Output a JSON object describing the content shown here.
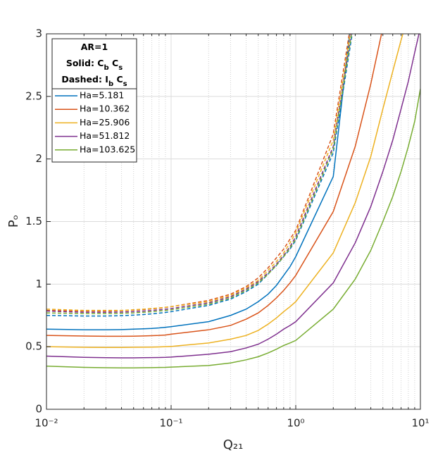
{
  "chart_data": {
    "type": "line",
    "xlabel": "Q₂₁",
    "ylabel": "Pₒ",
    "xscale": "log",
    "grid": true,
    "minor_grid": true,
    "xlim": [
      0.01,
      10
    ],
    "ylim": [
      0,
      3
    ],
    "xticks": [
      {
        "value": 0.01,
        "label": "10⁻²"
      },
      {
        "value": 0.1,
        "label": "10⁻¹"
      },
      {
        "value": 1,
        "label": "10⁰"
      },
      {
        "value": 10,
        "label": "10¹"
      }
    ],
    "yticks": [
      0,
      0.5,
      1,
      1.5,
      2,
      2.5,
      3
    ],
    "legend_position": "northwest",
    "legend_title": [
      [
        "AR=1"
      ],
      [
        "Solid: C",
        "b",
        " C",
        "s"
      ],
      [
        "Dashed: I",
        "b",
        " C",
        "s"
      ]
    ],
    "x": [
      0.01,
      0.02,
      0.03,
      0.04,
      0.05,
      0.06,
      0.07,
      0.08,
      0.09,
      0.1,
      0.2,
      0.3,
      0.4,
      0.5,
      0.6,
      0.7,
      0.8,
      0.9,
      1,
      2,
      3,
      4,
      5,
      6,
      7,
      8,
      9,
      10
    ],
    "series": [
      {
        "name": "Ha=5.181",
        "color": "#0072BD",
        "style": "solid",
        "values": [
          0.64,
          0.635,
          0.635,
          0.637,
          0.64,
          0.643,
          0.646,
          0.65,
          0.655,
          0.66,
          0.7,
          0.75,
          0.8,
          0.86,
          0.92,
          0.99,
          1.07,
          1.14,
          1.22,
          1.86,
          3.4,
          null,
          null,
          null,
          null,
          null,
          null,
          null
        ]
      },
      {
        "name": "Ha=10.362",
        "color": "#D95319",
        "style": "solid",
        "values": [
          0.59,
          0.585,
          0.583,
          0.583,
          0.584,
          0.586,
          0.588,
          0.59,
          0.593,
          0.6,
          0.635,
          0.67,
          0.72,
          0.77,
          0.83,
          0.89,
          0.95,
          1.01,
          1.07,
          1.58,
          2.1,
          2.6,
          3.05,
          null,
          null,
          null,
          null,
          null
        ]
      },
      {
        "name": "Ha=25.906",
        "color": "#EDB120",
        "style": "solid",
        "values": [
          0.5,
          0.495,
          0.494,
          0.494,
          0.495,
          0.496,
          0.497,
          0.498,
          0.5,
          0.502,
          0.53,
          0.56,
          0.59,
          0.63,
          0.68,
          0.73,
          0.78,
          0.82,
          0.86,
          1.25,
          1.65,
          2.02,
          2.4,
          2.7,
          2.95,
          3.15,
          null,
          null
        ]
      },
      {
        "name": "Ha=51.812",
        "color": "#7E2F8E",
        "style": "solid",
        "values": [
          0.425,
          0.415,
          0.412,
          0.411,
          0.411,
          0.412,
          0.413,
          0.414,
          0.415,
          0.417,
          0.44,
          0.46,
          0.49,
          0.52,
          0.56,
          0.6,
          0.64,
          0.67,
          0.7,
          1.01,
          1.33,
          1.62,
          1.9,
          2.15,
          2.4,
          2.62,
          2.85,
          3.05
        ]
      },
      {
        "name": "Ha=103.625",
        "color": "#77AC30",
        "style": "solid",
        "values": [
          0.345,
          0.335,
          0.332,
          0.331,
          0.331,
          0.332,
          0.333,
          0.334,
          0.335,
          0.337,
          0.35,
          0.37,
          0.395,
          0.42,
          0.45,
          0.48,
          0.51,
          0.53,
          0.55,
          0.8,
          1.04,
          1.27,
          1.5,
          1.7,
          1.9,
          2.1,
          2.3,
          2.56
        ]
      },
      {
        "color": "#0072BD",
        "style": "dashed",
        "values": [
          0.75,
          0.745,
          0.745,
          0.748,
          0.752,
          0.757,
          0.762,
          0.768,
          0.774,
          0.78,
          0.83,
          0.88,
          0.94,
          1.0,
          1.08,
          1.15,
          1.22,
          1.28,
          1.35,
          2.05,
          3.15,
          null,
          null,
          null,
          null,
          null,
          null,
          null
        ]
      },
      {
        "color": "#D95319",
        "style": "dashed",
        "values": [
          0.79,
          0.785,
          0.785,
          0.788,
          0.792,
          0.797,
          0.802,
          0.808,
          0.814,
          0.82,
          0.87,
          0.92,
          0.98,
          1.05,
          1.13,
          1.21,
          1.28,
          1.36,
          1.43,
          2.2,
          3.3,
          null,
          null,
          null,
          null,
          null,
          null,
          null
        ]
      },
      {
        "color": "#EDB120",
        "style": "dashed",
        "values": [
          0.8,
          0.79,
          0.79,
          0.79,
          0.795,
          0.8,
          0.805,
          0.81,
          0.815,
          0.82,
          0.86,
          0.91,
          0.97,
          1.03,
          1.11,
          1.18,
          1.25,
          1.33,
          1.41,
          2.15,
          3.25,
          null,
          null,
          null,
          null,
          null,
          null,
          null
        ]
      },
      {
        "color": "#7E2F8E",
        "style": "dashed",
        "values": [
          0.785,
          0.775,
          0.775,
          0.777,
          0.78,
          0.785,
          0.79,
          0.795,
          0.8,
          0.805,
          0.85,
          0.9,
          0.96,
          1.02,
          1.09,
          1.16,
          1.23,
          1.3,
          1.38,
          2.1,
          3.2,
          null,
          null,
          null,
          null,
          null,
          null,
          null
        ]
      },
      {
        "color": "#77AC30",
        "style": "dashed",
        "values": [
          0.77,
          0.765,
          0.765,
          0.767,
          0.77,
          0.775,
          0.78,
          0.785,
          0.79,
          0.795,
          0.84,
          0.89,
          0.95,
          1.01,
          1.08,
          1.15,
          1.22,
          1.29,
          1.36,
          2.08,
          3.18,
          null,
          null,
          null,
          null,
          null,
          null,
          null
        ]
      }
    ]
  }
}
